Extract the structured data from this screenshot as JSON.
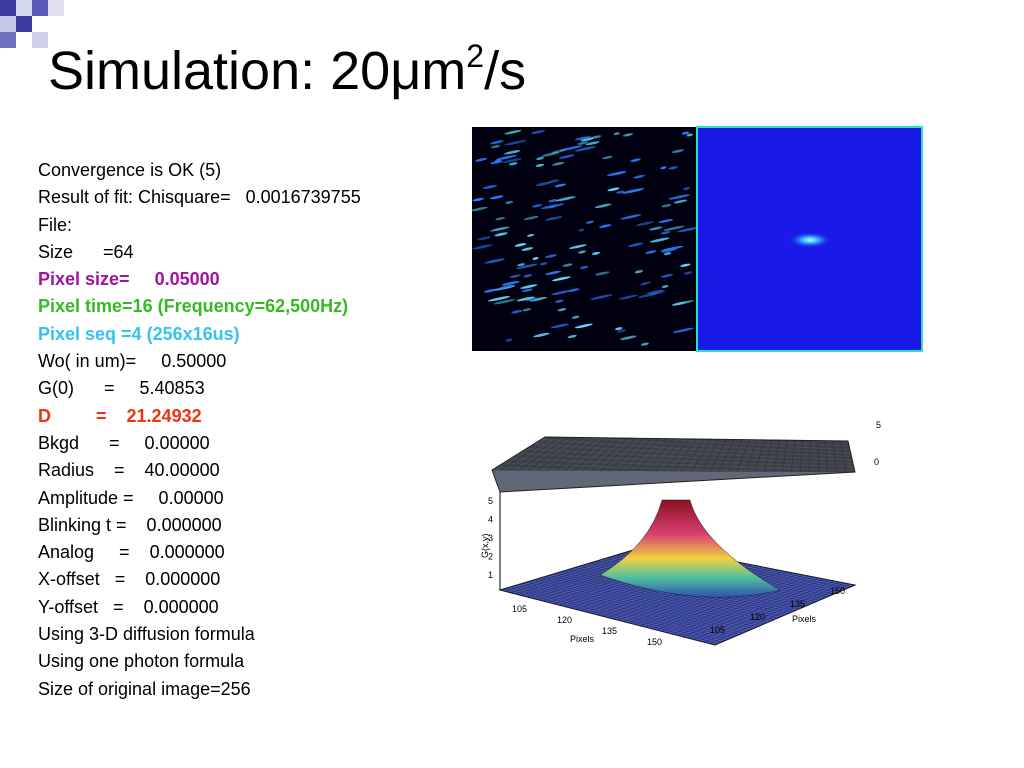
{
  "title": {
    "main": "Simulation: 20μm",
    "sup": "2",
    "tail": "/s"
  },
  "lines": [
    {
      "text": "Convergence is OK (5)"
    },
    {
      "text": "Result of fit: Chisquare=   0.0016739755"
    },
    {
      "text": "File:"
    },
    {
      "text": "Size      =64"
    },
    {
      "text": "Pixel size=     0.05000",
      "color": "#a0139f",
      "bold": true
    },
    {
      "text": "Pixel time=16 (Frequency=62,500Hz)",
      "color": "#33bb22",
      "bold": true
    },
    {
      "text": "Pixel seq =4 (256x16us)",
      "color": "#33c4f0",
      "bold": true
    },
    {
      "text": "Wo( in um)=     0.50000"
    },
    {
      "text": "G(0)      =     5.40853"
    },
    {
      "text": "D         =    21.24932",
      "color": "#ee3311",
      "bold": true
    },
    {
      "text": "Bkgd      =     0.00000"
    },
    {
      "text": "Radius    =    40.00000"
    },
    {
      "text": "Amplitude =     0.00000"
    },
    {
      "text": "Blinking t =    0.000000"
    },
    {
      "text": "Analog     =    0.000000"
    },
    {
      "text": "X-offset   =    0.000000"
    },
    {
      "text": "Y-offset   =    0.000000"
    },
    {
      "text": "Using 3-D diffusion formula"
    },
    {
      "text": "Using one photon formula"
    },
    {
      "text": "Size of original image=256"
    }
  ],
  "plot": {
    "colorbar_ticks": [
      5,
      0
    ],
    "zticks": [
      5,
      4,
      3,
      2,
      1
    ],
    "zlabel": "G(x,y)",
    "left_ticks": [
      105,
      120,
      135,
      150
    ],
    "left_label": "Pixels",
    "right_ticks": [
      150,
      135,
      120,
      105
    ],
    "right_label": "Pixels"
  }
}
